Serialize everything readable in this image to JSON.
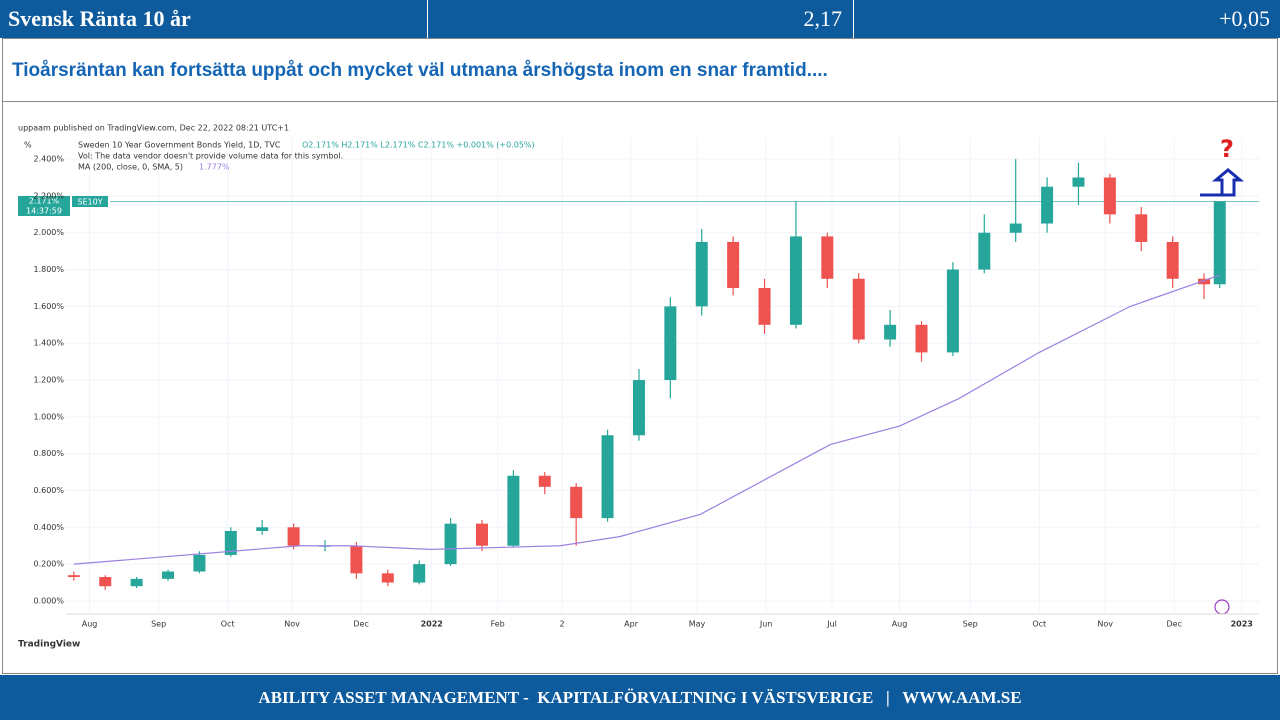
{
  "header": {
    "title": "Svensk Ränta 10 år",
    "value": "2,17",
    "change": "+0,05"
  },
  "subtitle": "Tioårsräntan kan fortsätta uppåt och mycket väl utmana årshögsta inom en snar framtid....",
  "footer": "ABILITY ASSET MANAGEMENT -  KAPITALFÖRVALTNING I VÄSTSVERIGE   |   WWW.AAM.SE",
  "chart_data": {
    "type": "candlestick",
    "published": "uppaam published on TradingView.com, Dec 22, 2022 08:21 UTC+1",
    "y_unit": "%",
    "symbol_line": "Sweden 10 Year Government Bonds Yield, 1D, TVC",
    "ohlc_line": "O2.171% H2.171% L2.171% C2.171% +0.001% (+0.05%)",
    "vol_line": "Vol: The data vendor doesn't provide volume data for this symbol.",
    "price_tag": "2.171%",
    "time_tag": "14:37:59",
    "symbol_tag": "SE10Y",
    "annotation": "?",
    "brand": "TradingView",
    "up_color": "#26a69a",
    "down_color": "#ef5350",
    "x": [
      0,
      2,
      4,
      6,
      8,
      10,
      12,
      14,
      16,
      18,
      20,
      22,
      24,
      26,
      28,
      30,
      32,
      34,
      36,
      38,
      40,
      42,
      44,
      46,
      48,
      50,
      52,
      54,
      56,
      58,
      60,
      62,
      64,
      66,
      68,
      70,
      72,
      73
    ],
    "open": [
      0.14,
      0.13,
      0.08,
      0.12,
      0.16,
      0.25,
      0.38,
      0.4,
      0.3,
      0.3,
      0.15,
      0.1,
      0.2,
      0.42,
      0.3,
      0.68,
      0.62,
      0.45,
      0.9,
      1.2,
      1.6,
      1.95,
      1.7,
      1.5,
      1.98,
      1.75,
      1.42,
      1.5,
      1.35,
      1.8,
      2.0,
      2.05,
      2.25,
      2.3,
      2.1,
      1.95,
      1.75,
      1.72
    ],
    "high": [
      0.16,
      0.14,
      0.13,
      0.17,
      0.27,
      0.4,
      0.44,
      0.42,
      0.33,
      0.32,
      0.17,
      0.22,
      0.45,
      0.44,
      0.71,
      0.7,
      0.64,
      0.93,
      1.26,
      1.65,
      2.02,
      1.98,
      1.75,
      2.17,
      2.0,
      1.78,
      1.58,
      1.52,
      1.84,
      2.1,
      2.4,
      2.3,
      2.38,
      2.32,
      2.14,
      1.98,
      1.78,
      2.17
    ],
    "low": [
      0.11,
      0.06,
      0.07,
      0.11,
      0.15,
      0.24,
      0.36,
      0.28,
      0.27,
      0.12,
      0.08,
      0.09,
      0.19,
      0.27,
      0.29,
      0.58,
      0.3,
      0.43,
      0.87,
      1.1,
      1.55,
      1.66,
      1.45,
      1.48,
      1.7,
      1.4,
      1.38,
      1.3,
      1.33,
      1.78,
      1.95,
      2.0,
      2.15,
      2.05,
      1.9,
      1.7,
      1.64,
      1.7
    ],
    "close": [
      0.13,
      0.08,
      0.12,
      0.16,
      0.25,
      0.38,
      0.4,
      0.3,
      0.3,
      0.15,
      0.1,
      0.2,
      0.42,
      0.3,
      0.68,
      0.62,
      0.45,
      0.9,
      1.2,
      1.6,
      1.95,
      1.7,
      1.5,
      1.98,
      1.75,
      1.42,
      1.5,
      1.35,
      1.8,
      2.0,
      2.05,
      2.25,
      2.3,
      2.1,
      1.95,
      1.75,
      1.72,
      2.17
    ],
    "ma": {
      "name": "MA (200, close, 0, SMA, 5)",
      "last_label": "1.777%",
      "color": "#9c80e0",
      "x": [
        0,
        14.4,
        17.6,
        22.7,
        31,
        34.8,
        39.9,
        48.2,
        52.6,
        56.4,
        61.5,
        67.3,
        73
      ],
      "values": [
        0.2,
        0.3,
        0.3,
        0.28,
        0.3,
        0.35,
        0.47,
        0.85,
        0.95,
        1.1,
        1.35,
        1.6,
        1.77
      ]
    },
    "xlim": [
      -0.5,
      75.5
    ],
    "ylim": [
      -0.06,
      2.52
    ],
    "xticks": [
      {
        "value": 1.0,
        "label": "Aug"
      },
      {
        "value": 5.4,
        "label": "Sep"
      },
      {
        "value": 9.8,
        "label": "Oct"
      },
      {
        "value": 13.9,
        "label": "Nov"
      },
      {
        "value": 18.3,
        "label": "Dec"
      },
      {
        "value": 22.8,
        "label": "2022"
      },
      {
        "value": 27.0,
        "label": "Feb"
      },
      {
        "value": 31.1,
        "label": "2"
      },
      {
        "value": 35.5,
        "label": "Apr"
      },
      {
        "value": 39.7,
        "label": "May"
      },
      {
        "value": 44.1,
        "label": "Jun"
      },
      {
        "value": 48.3,
        "label": "Jul"
      },
      {
        "value": 52.6,
        "label": "Aug"
      },
      {
        "value": 57.1,
        "label": "Sep"
      },
      {
        "value": 61.5,
        "label": "Oct"
      },
      {
        "value": 65.7,
        "label": "Nov"
      },
      {
        "value": 70.1,
        "label": "Dec"
      },
      {
        "value": 74.4,
        "label": "2023"
      }
    ],
    "yticks": [
      {
        "value": 0,
        "label": "0.000%"
      },
      {
        "value": 0.2,
        "label": "0.200%"
      },
      {
        "value": 0.4,
        "label": "0.400%"
      },
      {
        "value": 0.6,
        "label": "0.600%"
      },
      {
        "value": 0.8,
        "label": "0.800%"
      },
      {
        "value": 1.0,
        "label": "1.000%"
      },
      {
        "value": 1.2,
        "label": "1.200%"
      },
      {
        "value": 1.4,
        "label": "1.400%"
      },
      {
        "value": 1.6,
        "label": "1.600%"
      },
      {
        "value": 1.8,
        "label": "1.800%"
      },
      {
        "value": 2.0,
        "label": "2.000%"
      },
      {
        "value": 2.2,
        "label": "2.200%"
      },
      {
        "value": 2.4,
        "label": "2.400%"
      }
    ],
    "grid": true
  }
}
